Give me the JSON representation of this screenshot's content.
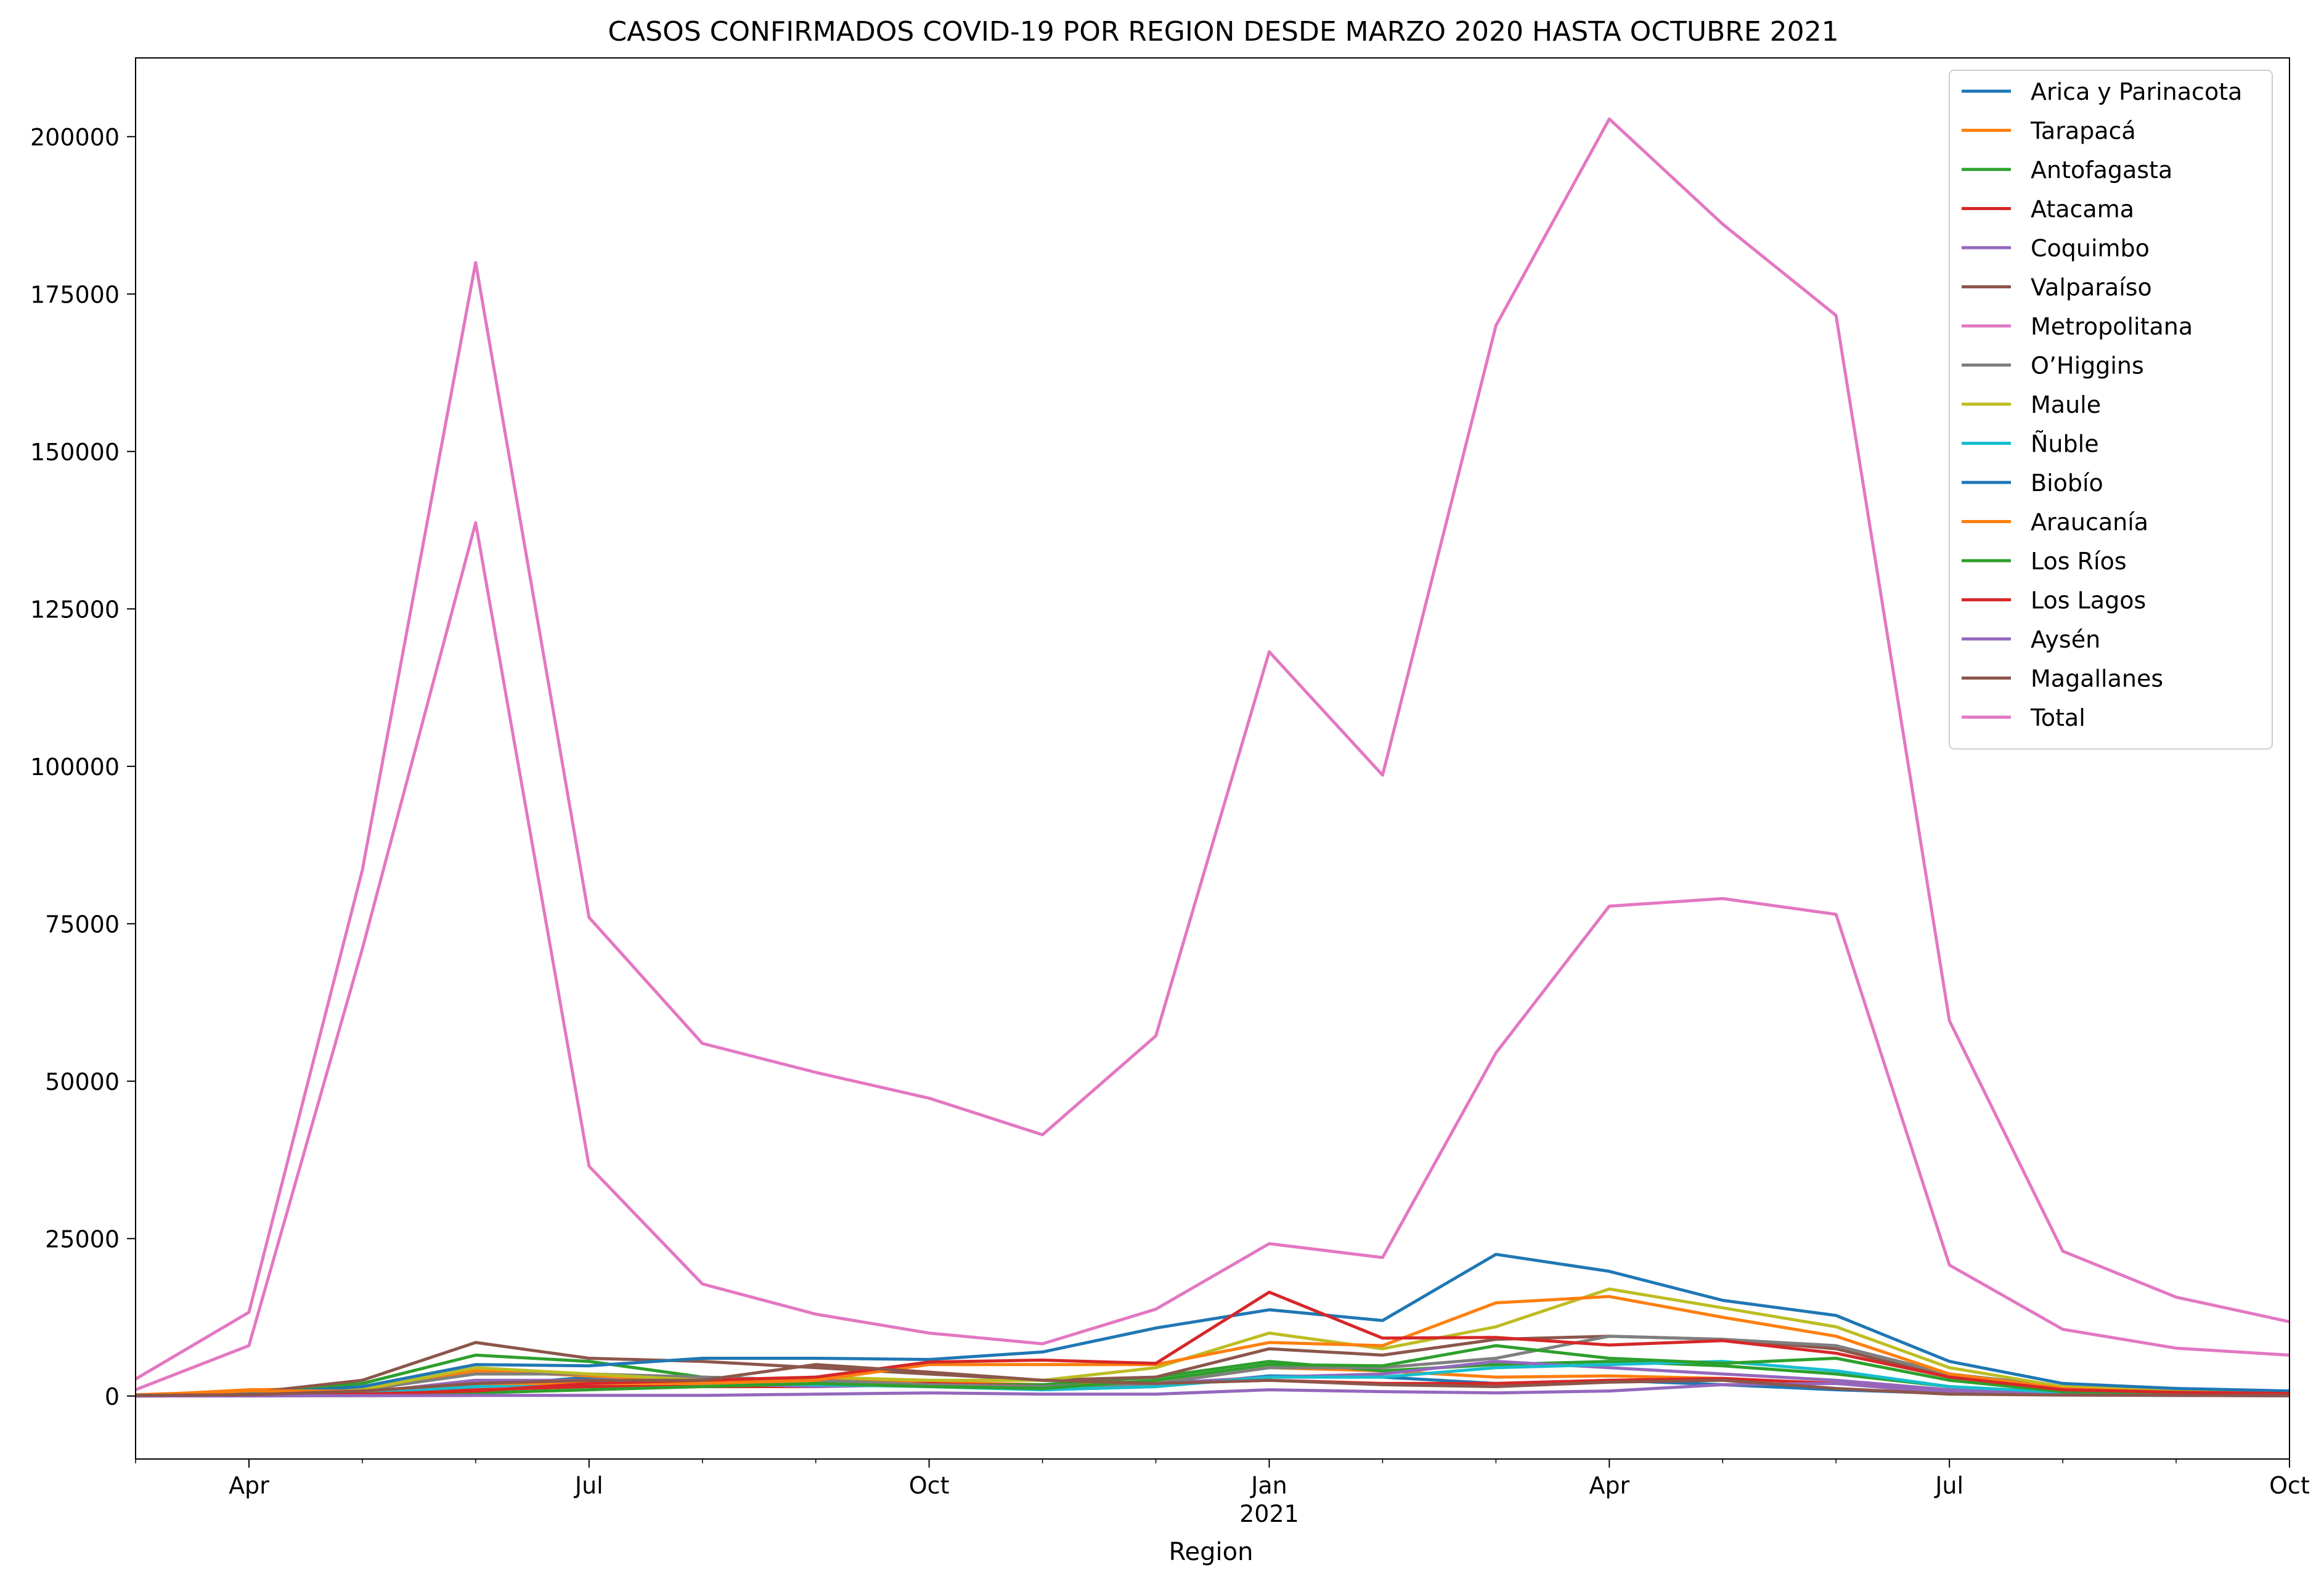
{
  "chart_data": {
    "type": "line",
    "title": "CASOS CONFIRMADOS COVID-19 POR REGION DESDE MARZO 2020 HASTA OCTUBRE 2021",
    "xlabel": "Region",
    "ylabel": "",
    "x": [
      "2020-03",
      "2020-04",
      "2020-05",
      "2020-06",
      "2020-07",
      "2020-08",
      "2020-09",
      "2020-10",
      "2020-11",
      "2020-12",
      "2021-01",
      "2021-02",
      "2021-03",
      "2021-04",
      "2021-05",
      "2021-06",
      "2021-07",
      "2021-08",
      "2021-09",
      "2021-10"
    ],
    "xlim": [
      "2020-03",
      "2021-10"
    ],
    "ylim": [
      -10000,
      212500
    ],
    "y_ticks": [
      0,
      25000,
      50000,
      75000,
      100000,
      125000,
      150000,
      175000,
      200000
    ],
    "y_tick_labels": [
      "0",
      "25000",
      "50000",
      "75000",
      "100000",
      "125000",
      "150000",
      "175000",
      "200000"
    ],
    "x_ticks": [
      {
        "x": "2020-04",
        "label": "Apr",
        "sublabel": ""
      },
      {
        "x": "2020-07",
        "label": "Jul",
        "sublabel": ""
      },
      {
        "x": "2020-10",
        "label": "Oct",
        "sublabel": ""
      },
      {
        "x": "2021-01",
        "label": "Jan",
        "sublabel": "2021"
      },
      {
        "x": "2021-04",
        "label": "Apr",
        "sublabel": ""
      },
      {
        "x": "2021-07",
        "label": "Jul",
        "sublabel": ""
      },
      {
        "x": "2021-10",
        "label": "Oct",
        "sublabel": ""
      }
    ],
    "grid": false,
    "legend_position": "top-right",
    "series": [
      {
        "name": "Arica y Parinacota",
        "color": "#1f77b4",
        "values": [
          20,
          500,
          1000,
          1500,
          3000,
          3000,
          2500,
          1800,
          1000,
          1500,
          3200,
          3000,
          2000,
          2500,
          1800,
          1000,
          400,
          200,
          100,
          50
        ]
      },
      {
        "name": "Tarapacá",
        "color": "#ff7f0e",
        "values": [
          50,
          1000,
          1200,
          4000,
          3200,
          2500,
          2500,
          2200,
          1800,
          2000,
          4500,
          4000,
          3000,
          3200,
          2800,
          2000,
          800,
          300,
          200,
          100
        ]
      },
      {
        "name": "Antofagasta",
        "color": "#2ca02c",
        "values": [
          100,
          500,
          2000,
          6500,
          5500,
          3000,
          2500,
          1800,
          1800,
          3000,
          5500,
          4000,
          5000,
          5500,
          4800,
          3500,
          1500,
          600,
          300,
          200
        ]
      },
      {
        "name": "Atacama",
        "color": "#d62728",
        "values": [
          10,
          100,
          300,
          1000,
          1500,
          1500,
          1500,
          2000,
          1500,
          2000,
          2500,
          2000,
          2000,
          2500,
          2800,
          2000,
          800,
          300,
          200,
          100
        ]
      },
      {
        "name": "Coquimbo",
        "color": "#9467bd",
        "values": [
          50,
          100,
          500,
          2500,
          2500,
          2000,
          1500,
          1800,
          1500,
          2000,
          3000,
          3500,
          5500,
          4500,
          3500,
          2500,
          1000,
          400,
          200,
          100
        ]
      },
      {
        "name": "Valparaíso",
        "color": "#8c564b",
        "values": [
          100,
          500,
          2500,
          8500,
          6000,
          5500,
          4500,
          3500,
          2500,
          3000,
          7500,
          6500,
          9000,
          9500,
          9000,
          7500,
          3000,
          1200,
          600,
          400
        ]
      },
      {
        "name": "Metropolitana",
        "color": "#e377c2",
        "values": [
          1000,
          8000,
          71000,
          138700,
          36500,
          17800,
          13000,
          10000,
          8300,
          13800,
          24200,
          22000,
          54500,
          77800,
          79000,
          76500,
          20800,
          10600,
          7600,
          6500
        ]
      },
      {
        "name": "O’Higgins",
        "color": "#7f7f7f",
        "values": [
          20,
          200,
          1000,
          3500,
          3500,
          3000,
          2500,
          1800,
          1500,
          2000,
          4500,
          4500,
          6000,
          9500,
          9000,
          8000,
          3500,
          1500,
          800,
          500
        ]
      },
      {
        "name": "Maule",
        "color": "#bcbd22",
        "values": [
          50,
          300,
          1000,
          4500,
          3500,
          2500,
          3000,
          2500,
          2500,
          4500,
          10000,
          7500,
          11000,
          17000,
          14000,
          11000,
          4500,
          1500,
          800,
          500
        ]
      },
      {
        "name": "Ñuble",
        "color": "#17becf",
        "values": [
          30,
          300,
          500,
          1500,
          2000,
          2000,
          1800,
          1500,
          1000,
          1500,
          3000,
          3000,
          4500,
          5000,
          5500,
          4000,
          1500,
          600,
          300,
          200
        ]
      },
      {
        "name": "Biobío",
        "color": "#1f77b4",
        "values": [
          100,
          300,
          1500,
          5000,
          4800,
          6000,
          6000,
          5800,
          7000,
          10800,
          13700,
          12000,
          22500,
          19800,
          15200,
          12800,
          5500,
          2000,
          1200,
          800
        ]
      },
      {
        "name": "Araucanía",
        "color": "#ff7f0e",
        "values": [
          200,
          800,
          800,
          2000,
          2000,
          2000,
          2500,
          5000,
          5000,
          5000,
          8500,
          8000,
          14800,
          15800,
          12500,
          9500,
          3500,
          1200,
          600,
          400
        ]
      },
      {
        "name": "Los Ríos",
        "color": "#2ca02c",
        "values": [
          50,
          100,
          200,
          500,
          1000,
          1500,
          2000,
          1500,
          1200,
          2500,
          5000,
          4800,
          8000,
          6000,
          5200,
          6000,
          2500,
          700,
          300,
          150
        ]
      },
      {
        "name": "Los Lagos",
        "color": "#d62728",
        "values": [
          100,
          200,
          300,
          800,
          2000,
          2500,
          3000,
          5400,
          5700,
          5200,
          16500,
          9200,
          9300,
          8100,
          8800,
          6800,
          3000,
          1000,
          600,
          400
        ]
      },
      {
        "name": "Aysén",
        "color": "#9467bd",
        "values": [
          0,
          20,
          50,
          100,
          100,
          100,
          300,
          500,
          300,
          300,
          1000,
          700,
          500,
          800,
          1800,
          2000,
          500,
          200,
          100,
          50
        ]
      },
      {
        "name": "Magallanes",
        "color": "#8c564b",
        "values": [
          100,
          200,
          800,
          2000,
          2500,
          2500,
          5000,
          3800,
          2500,
          2000,
          2500,
          1800,
          1500,
          2200,
          2500,
          1200,
          300,
          150,
          100,
          50
        ]
      },
      {
        "name": "Total",
        "color": "#e377c2",
        "values": [
          2700,
          13300,
          83500,
          180000,
          76000,
          56000,
          51400,
          47300,
          41500,
          57200,
          118200,
          98600,
          170000,
          202800,
          186100,
          171600,
          59600,
          23000,
          15700,
          11800
        ]
      }
    ]
  }
}
